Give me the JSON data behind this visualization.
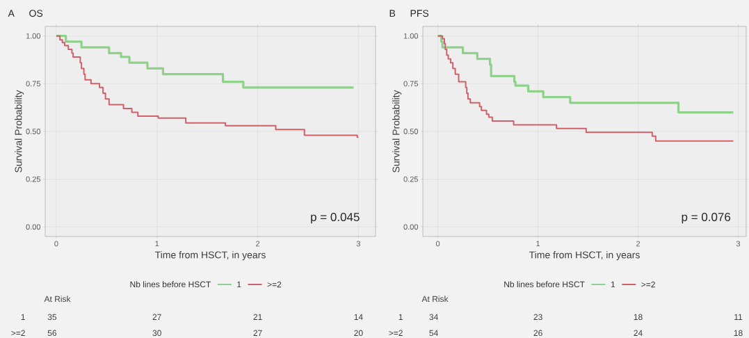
{
  "chart_data": [
    {
      "type": "step",
      "title": "A",
      "subtitle": "OS",
      "xlabel": "Time from HSCT, in years",
      "ylabel": "Survival Probability",
      "legend_title": "Nb lines before HSCT",
      "legend": "bottom",
      "grid": true,
      "xlim": [
        -0.11,
        3.17
      ],
      "ylim": [
        -0.05,
        1.05
      ],
      "xticks": [
        0,
        1,
        2,
        3
      ],
      "yticks": [
        {
          "value": 0,
          "label": "0.00"
        },
        {
          "value": 0.25,
          "label": "0.25"
        },
        {
          "value": 0.5,
          "label": "0.50"
        },
        {
          "value": 0.75,
          "label": "0.75"
        },
        {
          "value": 1,
          "label": "1.00"
        }
      ],
      "series": [
        {
          "name": "1",
          "color": "#8fd18a",
          "x": [
            0,
            0.095,
            0.25,
            0.524,
            0.643,
            0.726,
            0.905,
            1.06,
            1.655,
            1.857,
            2.952
          ],
          "values": [
            1,
            0.97,
            0.94,
            0.91,
            0.89,
            0.86,
            0.83,
            0.8,
            0.76,
            0.73,
            0.73
          ]
        },
        {
          "name": ">=2",
          "color": "#d0606a",
          "x": [
            0,
            0.036,
            0.06,
            0.083,
            0.119,
            0.155,
            0.167,
            0.238,
            0.25,
            0.274,
            0.286,
            0.345,
            0.429,
            0.464,
            0.488,
            0.524,
            0.667,
            0.75,
            0.81,
            1.012,
            1.286,
            1.679,
            2.179,
            2.464,
            2.988,
            3.0
          ],
          "values": [
            1,
            0.98,
            0.965,
            0.95,
            0.93,
            0.91,
            0.89,
            0.86,
            0.83,
            0.8,
            0.77,
            0.75,
            0.73,
            0.7,
            0.67,
            0.64,
            0.62,
            0.6,
            0.58,
            0.57,
            0.545,
            0.53,
            0.51,
            0.48,
            0.47,
            0.47
          ]
        }
      ],
      "annotations": [
        "p = 0.045",
        "At Risk",
        "1",
        "35",
        "27",
        "21",
        "14",
        ">=2",
        "56",
        "30",
        "27",
        "20"
      ]
    },
    {
      "type": "step",
      "title": "B",
      "subtitle": "PFS",
      "xlabel": "Time from HSCT, in years",
      "ylabel": "Survival Probability",
      "legend_title": "Nb lines before HSCT",
      "legend": "bottom",
      "grid": true,
      "xlim": [
        -0.15,
        3.08
      ],
      "ylim": [
        -0.05,
        1.05
      ],
      "xticks": [
        0,
        1,
        2,
        3
      ],
      "yticks": [
        {
          "value": 0,
          "label": "0.00"
        },
        {
          "value": 0.25,
          "label": "0.25"
        },
        {
          "value": 0.5,
          "label": "0.50"
        },
        {
          "value": 0.75,
          "label": "0.75"
        },
        {
          "value": 1,
          "label": "1.00"
        }
      ],
      "series": [
        {
          "name": "1",
          "color": "#8fd18a",
          "x": [
            0,
            0.035,
            0.046,
            0.25,
            0.394,
            0.521,
            0.532,
            0.764,
            0.775,
            0.903,
            1.053,
            1.322,
            2.403,
            2.951
          ],
          "values": [
            1,
            0.97,
            0.94,
            0.91,
            0.88,
            0.85,
            0.79,
            0.76,
            0.74,
            0.71,
            0.68,
            0.65,
            0.6,
            0.6
          ]
        },
        {
          "name": ">=2",
          "color": "#d0606a",
          "x": [
            0,
            0.046,
            0.065,
            0.074,
            0.088,
            0.104,
            0.127,
            0.15,
            0.174,
            0.208,
            0.278,
            0.289,
            0.301,
            0.324,
            0.417,
            0.435,
            0.486,
            0.509,
            0.544,
            0.757,
            1.185,
            1.481,
            2.141,
            2.176,
            2.951
          ],
          "values": [
            1,
            0.985,
            0.96,
            0.93,
            0.9,
            0.88,
            0.86,
            0.83,
            0.8,
            0.76,
            0.73,
            0.7,
            0.67,
            0.65,
            0.63,
            0.61,
            0.59,
            0.575,
            0.555,
            0.535,
            0.515,
            0.495,
            0.475,
            0.45,
            0.45
          ]
        }
      ],
      "annotations": [
        "p = 0.076",
        "At Risk",
        "1",
        "34",
        "23",
        "18",
        "11",
        ">=2",
        "54",
        "26",
        "24",
        "18"
      ]
    }
  ]
}
